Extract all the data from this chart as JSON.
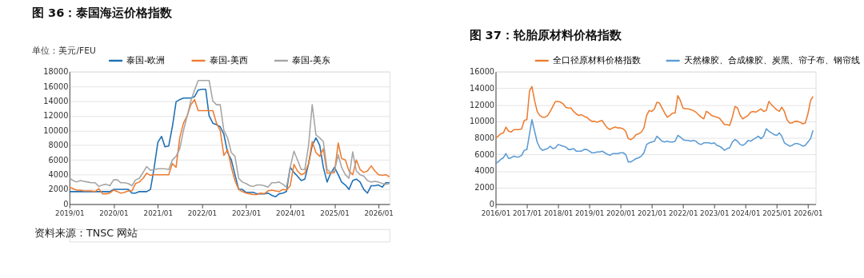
{
  "chart_data": [
    {
      "type": "line",
      "title": "图 36：泰国海运价格指数",
      "ylabel": "单位：美元/FEU",
      "annotations": [
        "资料来源：TNSC 网站"
      ],
      "x": [
        "2019-01",
        "2019-02",
        "2019-03",
        "2019-04",
        "2019-05",
        "2019-06",
        "2019-07",
        "2019-08",
        "2019-09",
        "2019-10",
        "2019-11",
        "2019-12",
        "2020-01",
        "2020-02",
        "2020-03",
        "2020-04",
        "2020-05",
        "2020-06",
        "2020-07",
        "2020-08",
        "2020-09",
        "2020-10",
        "2020-11",
        "2020-12",
        "2021-01",
        "2021-02",
        "2021-03",
        "2021-04",
        "2021-05",
        "2021-06",
        "2021-07",
        "2021-08",
        "2021-09",
        "2021-10",
        "2021-11",
        "2021-12",
        "2022-01",
        "2022-02",
        "2022-03",
        "2022-04",
        "2022-05",
        "2022-06",
        "2022-07",
        "2022-08",
        "2022-09",
        "2022-10",
        "2022-11",
        "2022-12",
        "2023-01",
        "2023-02",
        "2023-03",
        "2023-04",
        "2023-05",
        "2023-06",
        "2023-07",
        "2023-08",
        "2023-09",
        "2023-10",
        "2023-11",
        "2023-12",
        "2024-01",
        "2024-02",
        "2024-03",
        "2024-04",
        "2024-05",
        "2024-06",
        "2024-07",
        "2024-08",
        "2024-09",
        "2024-10",
        "2024-11",
        "2024-12",
        "2025-01",
        "2025-02",
        "2025-03",
        "2025-04",
        "2025-05",
        "2025-06",
        "2025-07",
        "2025-08",
        "2025-09",
        "2025-10",
        "2025-11",
        "2025-12",
        "2026-01",
        "2026-02",
        "2026-03",
        "2026-04"
      ],
      "series": [
        {
          "name": "泰国-欧洲",
          "color": "#1f6fb5",
          "values": [
            1700,
            1700,
            1700,
            1700,
            1700,
            1700,
            1700,
            1700,
            1700,
            1700,
            1700,
            1700,
            2000,
            2000,
            2000,
            2000,
            2000,
            1500,
            1500,
            1700,
            1700,
            1700,
            2000,
            4900,
            8400,
            9200,
            7800,
            7900,
            10500,
            13900,
            14200,
            14400,
            14400,
            14400,
            14600,
            15500,
            15600,
            15600,
            12000,
            11000,
            10800,
            10500,
            9500,
            7000,
            6000,
            4000,
            2000,
            2000,
            1600,
            1600,
            1600,
            1400,
            1400,
            1400,
            1500,
            1200,
            1000,
            1400,
            1500,
            1700,
            5000,
            4300,
            3800,
            3200,
            3400,
            5500,
            8000,
            9000,
            8000,
            5000,
            3000,
            4200,
            5000,
            4000,
            3000,
            2600,
            2000,
            3200,
            3400,
            3000,
            2000,
            1500,
            2500,
            2500,
            2600,
            2300,
            2900,
            2900
          ]
        },
        {
          "name": "泰国-美西",
          "color": "#ed7d31",
          "values": [
            2300,
            2100,
            1900,
            1900,
            1800,
            1800,
            1800,
            1700,
            2100,
            1400,
            1400,
            1500,
            1900,
            1700,
            1500,
            1600,
            1800,
            1800,
            2800,
            3000,
            3500,
            4200,
            3900,
            4000,
            4000,
            4000,
            4000,
            4000,
            5500,
            5000,
            9000,
            11000,
            12000,
            13500,
            14200,
            12700,
            12700,
            12700,
            12700,
            12700,
            11000,
            10000,
            6600,
            7400,
            5000,
            3200,
            2000,
            1700,
            1500,
            1400,
            1300,
            1300,
            1500,
            1400,
            1800,
            1900,
            1800,
            1700,
            2000,
            1900,
            2500,
            5400,
            4500,
            4000,
            4200,
            5500,
            8500,
            7000,
            6500,
            7500,
            4200,
            4200,
            4300,
            8300,
            6200,
            6000,
            4500,
            4000,
            6000,
            4700,
            4300,
            4500,
            5200,
            4500,
            4000,
            3900,
            4000,
            3700
          ]
        },
        {
          "name": "泰国-美东",
          "color": "#a5a5a5",
          "values": [
            3500,
            3200,
            3000,
            3200,
            3100,
            3000,
            2900,
            2900,
            2400,
            2600,
            2700,
            2500,
            3300,
            3300,
            2900,
            2900,
            2800,
            2500,
            3300,
            3500,
            4300,
            5100,
            4600,
            4700,
            4800,
            4800,
            4800,
            4700,
            6000,
            6500,
            7500,
            10000,
            12000,
            14000,
            15500,
            16800,
            16800,
            16800,
            16800,
            14000,
            13500,
            13500,
            10000,
            9000,
            7000,
            6500,
            3500,
            3000,
            2800,
            2500,
            2400,
            2600,
            2600,
            2500,
            2300,
            2900,
            2900,
            3000,
            2700,
            2300,
            5000,
            7200,
            6000,
            4700,
            4700,
            8000,
            13500,
            9400,
            9000,
            8500,
            4700,
            4300,
            4500,
            6700,
            5000,
            4000,
            3500,
            7100,
            4500,
            4000,
            3800,
            3200,
            3000,
            3100,
            3000,
            2800,
            2700,
            2800
          ]
        }
      ],
      "xlim": [
        "2019-01",
        "2026-04"
      ],
      "xticks": [
        {
          "value": "2019-01",
          "label": "2019/01"
        },
        {
          "value": "2020-01",
          "label": "2020/01"
        },
        {
          "value": "2021-01",
          "label": "2021/01"
        },
        {
          "value": "2022-01",
          "label": "2022/01"
        },
        {
          "value": "2023-01",
          "label": "2023/01"
        },
        {
          "value": "2024-01",
          "label": "2024/01"
        },
        {
          "value": "2025-01",
          "label": "2025/01"
        },
        {
          "value": "2026-01",
          "label": "2026/01"
        }
      ],
      "ylim": [
        0,
        18000
      ],
      "yticks": [
        0,
        2000,
        4000,
        6000,
        8000,
        10000,
        12000,
        14000,
        16000,
        18000
      ],
      "grid": "y",
      "legend": "top",
      "line_style": "solid",
      "marker": "none"
    },
    {
      "type": "line",
      "title": "图 37：轮胎原材料价格指数",
      "x": [
        "2016-01",
        "2016-02",
        "2016-03",
        "2016-04",
        "2016-05",
        "2016-06",
        "2016-07",
        "2016-08",
        "2016-09",
        "2016-10",
        "2016-11",
        "2016-12",
        "2017-01",
        "2017-02",
        "2017-03",
        "2017-04",
        "2017-05",
        "2017-06",
        "2017-07",
        "2017-08",
        "2017-09",
        "2017-10",
        "2017-11",
        "2017-12",
        "2018-01",
        "2018-02",
        "2018-03",
        "2018-04",
        "2018-05",
        "2018-06",
        "2018-07",
        "2018-08",
        "2018-09",
        "2018-10",
        "2018-11",
        "2018-12",
        "2019-01",
        "2019-02",
        "2019-03",
        "2019-04",
        "2019-05",
        "2019-06",
        "2019-07",
        "2019-08",
        "2019-09",
        "2019-10",
        "2019-11",
        "2019-12",
        "2020-01",
        "2020-02",
        "2020-03",
        "2020-04",
        "2020-05",
        "2020-06",
        "2020-07",
        "2020-08",
        "2020-09",
        "2020-10",
        "2020-11",
        "2020-12",
        "2021-01",
        "2021-02",
        "2021-03",
        "2021-04",
        "2021-05",
        "2021-06",
        "2021-07",
        "2021-08",
        "2021-09",
        "2021-10",
        "2021-11",
        "2021-12",
        "2022-01",
        "2022-02",
        "2022-03",
        "2022-04",
        "2022-05",
        "2022-06",
        "2022-07",
        "2022-08",
        "2022-09",
        "2022-10",
        "2022-11",
        "2022-12",
        "2023-01",
        "2023-02",
        "2023-03",
        "2023-04",
        "2023-05",
        "2023-06",
        "2023-07",
        "2023-08",
        "2023-09",
        "2023-10",
        "2023-11",
        "2023-12",
        "2024-01",
        "2024-02",
        "2024-03",
        "2024-04",
        "2024-05",
        "2024-06",
        "2024-07",
        "2024-08",
        "2024-09",
        "2024-10",
        "2024-11",
        "2024-12",
        "2025-01",
        "2025-02",
        "2025-03",
        "2025-04",
        "2025-05",
        "2025-06",
        "2025-07",
        "2025-08",
        "2025-09",
        "2025-10",
        "2025-11",
        "2025-12",
        "2026-01",
        "2026-02",
        "2026-03"
      ],
      "series": [
        {
          "name": "全口径原材料价格指数",
          "color": "#ed7d31",
          "values": [
            8000,
            8200,
            8500,
            8600,
            9300,
            8800,
            8700,
            9000,
            9000,
            9000,
            9100,
            10100,
            10200,
            13700,
            14200,
            12500,
            11200,
            10700,
            10500,
            10500,
            10700,
            11200,
            11800,
            12400,
            12400,
            12300,
            12100,
            11700,
            11600,
            11600,
            11200,
            10900,
            10700,
            10800,
            10600,
            10500,
            10200,
            10000,
            10000,
            9900,
            10000,
            10100,
            9600,
            9200,
            9000,
            9200,
            9300,
            9200,
            9200,
            9100,
            8800,
            7900,
            7800,
            8000,
            8400,
            8500,
            8700,
            9200,
            10700,
            11300,
            11200,
            11500,
            12300,
            12200,
            11600,
            11000,
            10500,
            10700,
            11000,
            11000,
            13100,
            12500,
            11600,
            11500,
            11500,
            11400,
            11300,
            11100,
            10800,
            10500,
            10300,
            11200,
            11000,
            10700,
            10600,
            10500,
            10400,
            10000,
            9600,
            9600,
            9500,
            10500,
            11800,
            11600,
            10700,
            10300,
            10500,
            10700,
            11100,
            11200,
            11100,
            11300,
            11500,
            11200,
            11300,
            12400,
            12000,
            11700,
            11400,
            11200,
            11700,
            11200,
            10200,
            9800,
            9800,
            10000,
            10000,
            9900,
            9700,
            9800,
            10900,
            12500,
            13000
          ]
        },
        {
          "name": "天然橡胶、合成橡胶、炭黑、帘子布、钢帘线",
          "color": "#5b9bd5",
          "values": [
            4900,
            5100,
            5400,
            5600,
            6100,
            5500,
            5600,
            5800,
            5700,
            5700,
            5900,
            6500,
            6600,
            8500,
            10200,
            8800,
            7500,
            6800,
            6500,
            6600,
            6700,
            7000,
            6700,
            6800,
            7200,
            7100,
            7000,
            6900,
            6600,
            6600,
            6700,
            6400,
            6400,
            6400,
            6600,
            6600,
            6400,
            6200,
            6200,
            6300,
            6300,
            6400,
            6200,
            6000,
            5900,
            6100,
            6100,
            6100,
            6200,
            6200,
            6000,
            5100,
            5100,
            5300,
            5500,
            5600,
            5800,
            6200,
            7200,
            7400,
            7500,
            7600,
            8200,
            7900,
            7600,
            7500,
            7600,
            7500,
            7500,
            7600,
            8300,
            8100,
            7800,
            7700,
            7700,
            7600,
            7700,
            7600,
            7300,
            7200,
            7400,
            7400,
            7400,
            7300,
            7400,
            7100,
            7000,
            6800,
            6500,
            6700,
            6800,
            7500,
            7800,
            7600,
            7200,
            7100,
            7300,
            7700,
            7600,
            7800,
            8000,
            8200,
            7900,
            8200,
            9100,
            8800,
            8600,
            8400,
            8300,
            8600,
            8200,
            7400,
            7200,
            7000,
            7100,
            7300,
            7300,
            7200,
            7000,
            7100,
            7500,
            7900,
            8900
          ]
        }
      ],
      "xlim": [
        "2016-01",
        "2026-04"
      ],
      "xticks": [
        {
          "value": "2016-01",
          "label": "2016/01"
        },
        {
          "value": "2017-01",
          "label": "2017/01"
        },
        {
          "value": "2018-01",
          "label": "2018/01"
        },
        {
          "value": "2019-01",
          "label": "2019/01"
        },
        {
          "value": "2020-01",
          "label": "2020/01"
        },
        {
          "value": "2021-01",
          "label": "2021/01"
        },
        {
          "value": "2022-01",
          "label": "2022/01"
        },
        {
          "value": "2023-01",
          "label": "2023/01"
        },
        {
          "value": "2024-01",
          "label": "2024/01"
        },
        {
          "value": "2025-01",
          "label": "2025/01"
        },
        {
          "value": "2026-01",
          "label": "2026/01"
        }
      ],
      "ylim": [
        0,
        16000
      ],
      "yticks": [
        0,
        2000,
        4000,
        6000,
        8000,
        10000,
        12000,
        14000,
        16000
      ],
      "grid": "y",
      "legend": "top",
      "line_style": "solid",
      "marker": "none"
    }
  ]
}
